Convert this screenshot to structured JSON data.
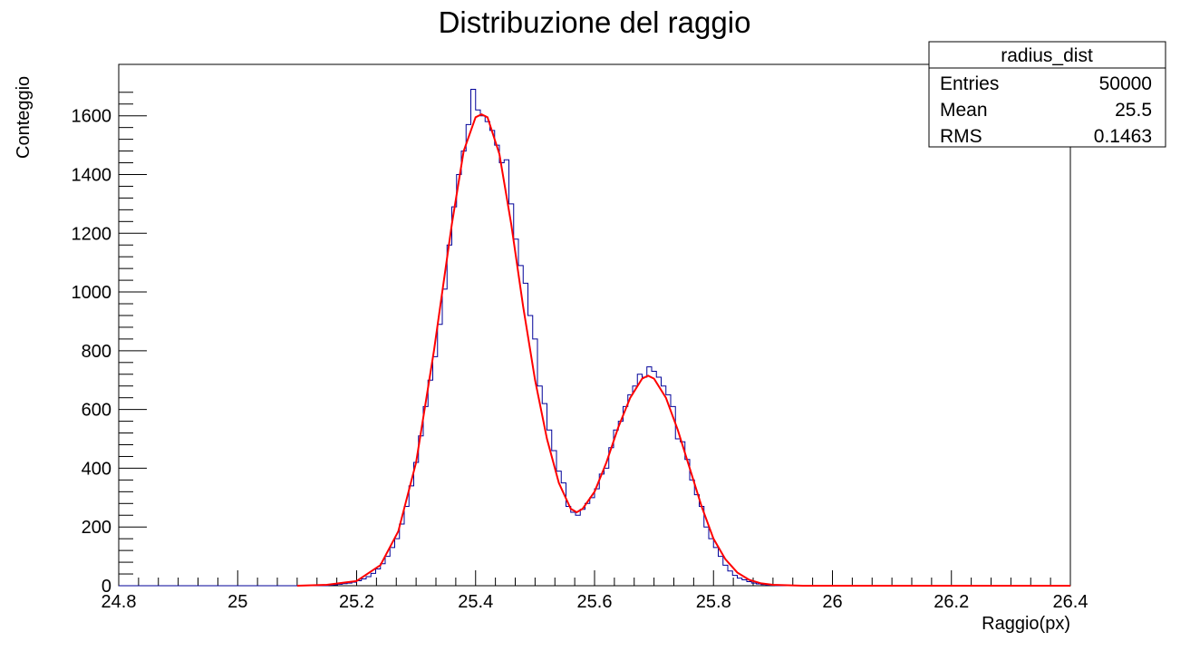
{
  "chart_data": {
    "type": "histogram",
    "title": "Distribuzione del raggio",
    "xlabel": "Raggio(px)",
    "ylabel": "Conteggio",
    "xlim": [
      24.8,
      26.4
    ],
    "ylim": [
      0,
      1775
    ],
    "xticks": [
      "24.8",
      "25",
      "25.2",
      "25.4",
      "25.6",
      "25.8",
      "26",
      "26.2",
      "26.4"
    ],
    "yticks": [
      "0",
      "200",
      "400",
      "600",
      "800",
      "1000",
      "1200",
      "1400",
      "1600"
    ],
    "grid": false,
    "bin_width": 0.008,
    "histogram_counts": [
      [
        25.152,
        2
      ],
      [
        25.16,
        3
      ],
      [
        25.168,
        5
      ],
      [
        25.176,
        7
      ],
      [
        25.184,
        9
      ],
      [
        25.192,
        12
      ],
      [
        25.2,
        17
      ],
      [
        25.208,
        23
      ],
      [
        25.216,
        31
      ],
      [
        25.224,
        42
      ],
      [
        25.232,
        57
      ],
      [
        25.24,
        75
      ],
      [
        25.248,
        100
      ],
      [
        25.256,
        130
      ],
      [
        25.264,
        160
      ],
      [
        25.272,
        210
      ],
      [
        25.28,
        270
      ],
      [
        25.288,
        340
      ],
      [
        25.296,
        420
      ],
      [
        25.304,
        510
      ],
      [
        25.312,
        610
      ],
      [
        25.32,
        700
      ],
      [
        25.328,
        780
      ],
      [
        25.336,
        890
      ],
      [
        25.344,
        1010
      ],
      [
        25.352,
        1160
      ],
      [
        25.36,
        1290
      ],
      [
        25.368,
        1400
      ],
      [
        25.376,
        1480
      ],
      [
        25.384,
        1570
      ],
      [
        25.392,
        1690
      ],
      [
        25.4,
        1620
      ],
      [
        25.408,
        1600
      ],
      [
        25.416,
        1580
      ],
      [
        25.424,
        1550
      ],
      [
        25.432,
        1500
      ],
      [
        25.44,
        1440
      ],
      [
        25.448,
        1450
      ],
      [
        25.456,
        1300
      ],
      [
        25.464,
        1180
      ],
      [
        25.472,
        1090
      ],
      [
        25.48,
        1030
      ],
      [
        25.488,
        920
      ],
      [
        25.496,
        840
      ],
      [
        25.504,
        680
      ],
      [
        25.512,
        620
      ],
      [
        25.52,
        530
      ],
      [
        25.528,
        460
      ],
      [
        25.536,
        390
      ],
      [
        25.544,
        350
      ],
      [
        25.552,
        270
      ],
      [
        25.56,
        250
      ],
      [
        25.568,
        240
      ],
      [
        25.576,
        260
      ],
      [
        25.584,
        280
      ],
      [
        25.592,
        300
      ],
      [
        25.6,
        330
      ],
      [
        25.608,
        380
      ],
      [
        25.616,
        400
      ],
      [
        25.624,
        470
      ],
      [
        25.632,
        530
      ],
      [
        25.64,
        560
      ],
      [
        25.648,
        610
      ],
      [
        25.656,
        650
      ],
      [
        25.664,
        680
      ],
      [
        25.672,
        720
      ],
      [
        25.68,
        710
      ],
      [
        25.688,
        745
      ],
      [
        25.696,
        730
      ],
      [
        25.704,
        710
      ],
      [
        25.712,
        680
      ],
      [
        25.72,
        650
      ],
      [
        25.728,
        610
      ],
      [
        25.736,
        500
      ],
      [
        25.744,
        490
      ],
      [
        25.752,
        430
      ],
      [
        25.76,
        360
      ],
      [
        25.768,
        310
      ],
      [
        25.776,
        270
      ],
      [
        25.784,
        200
      ],
      [
        25.792,
        160
      ],
      [
        25.8,
        130
      ],
      [
        25.808,
        100
      ],
      [
        25.816,
        70
      ],
      [
        25.824,
        50
      ],
      [
        25.832,
        35
      ],
      [
        25.84,
        26
      ],
      [
        25.848,
        20
      ],
      [
        25.856,
        14
      ],
      [
        25.864,
        9
      ],
      [
        25.872,
        6
      ],
      [
        25.88,
        4
      ],
      [
        25.888,
        2
      ],
      [
        25.896,
        1
      ]
    ],
    "fit_curve": [
      [
        25.1,
        0
      ],
      [
        25.15,
        3
      ],
      [
        25.2,
        16
      ],
      [
        25.24,
        70
      ],
      [
        25.27,
        185
      ],
      [
        25.3,
        420
      ],
      [
        25.33,
        800
      ],
      [
        25.36,
        1230
      ],
      [
        25.38,
        1480
      ],
      [
        25.4,
        1595
      ],
      [
        25.41,
        1605
      ],
      [
        25.42,
        1595
      ],
      [
        25.44,
        1470
      ],
      [
        25.46,
        1230
      ],
      [
        25.48,
        950
      ],
      [
        25.5,
        700
      ],
      [
        25.52,
        500
      ],
      [
        25.54,
        350
      ],
      [
        25.56,
        262
      ],
      [
        25.57,
        250
      ],
      [
        25.58,
        262
      ],
      [
        25.6,
        320
      ],
      [
        25.62,
        420
      ],
      [
        25.64,
        540
      ],
      [
        25.66,
        640
      ],
      [
        25.68,
        705
      ],
      [
        25.69,
        715
      ],
      [
        25.7,
        705
      ],
      [
        25.72,
        640
      ],
      [
        25.74,
        530
      ],
      [
        25.76,
        400
      ],
      [
        25.78,
        270
      ],
      [
        25.8,
        160
      ],
      [
        25.82,
        90
      ],
      [
        25.84,
        45
      ],
      [
        25.86,
        20
      ],
      [
        25.88,
        8
      ],
      [
        25.9,
        3
      ],
      [
        25.95,
        0
      ],
      [
        26.4,
        0
      ]
    ],
    "series_colors": {
      "histogram": "#000099",
      "fit": "#ff0000"
    }
  },
  "stats_box": {
    "name": "radius_dist",
    "rows": [
      {
        "label": "Entries",
        "value": "50000"
      },
      {
        "label": "Mean",
        "value": "25.5"
      },
      {
        "label": "RMS",
        "value": "0.1463"
      }
    ]
  }
}
